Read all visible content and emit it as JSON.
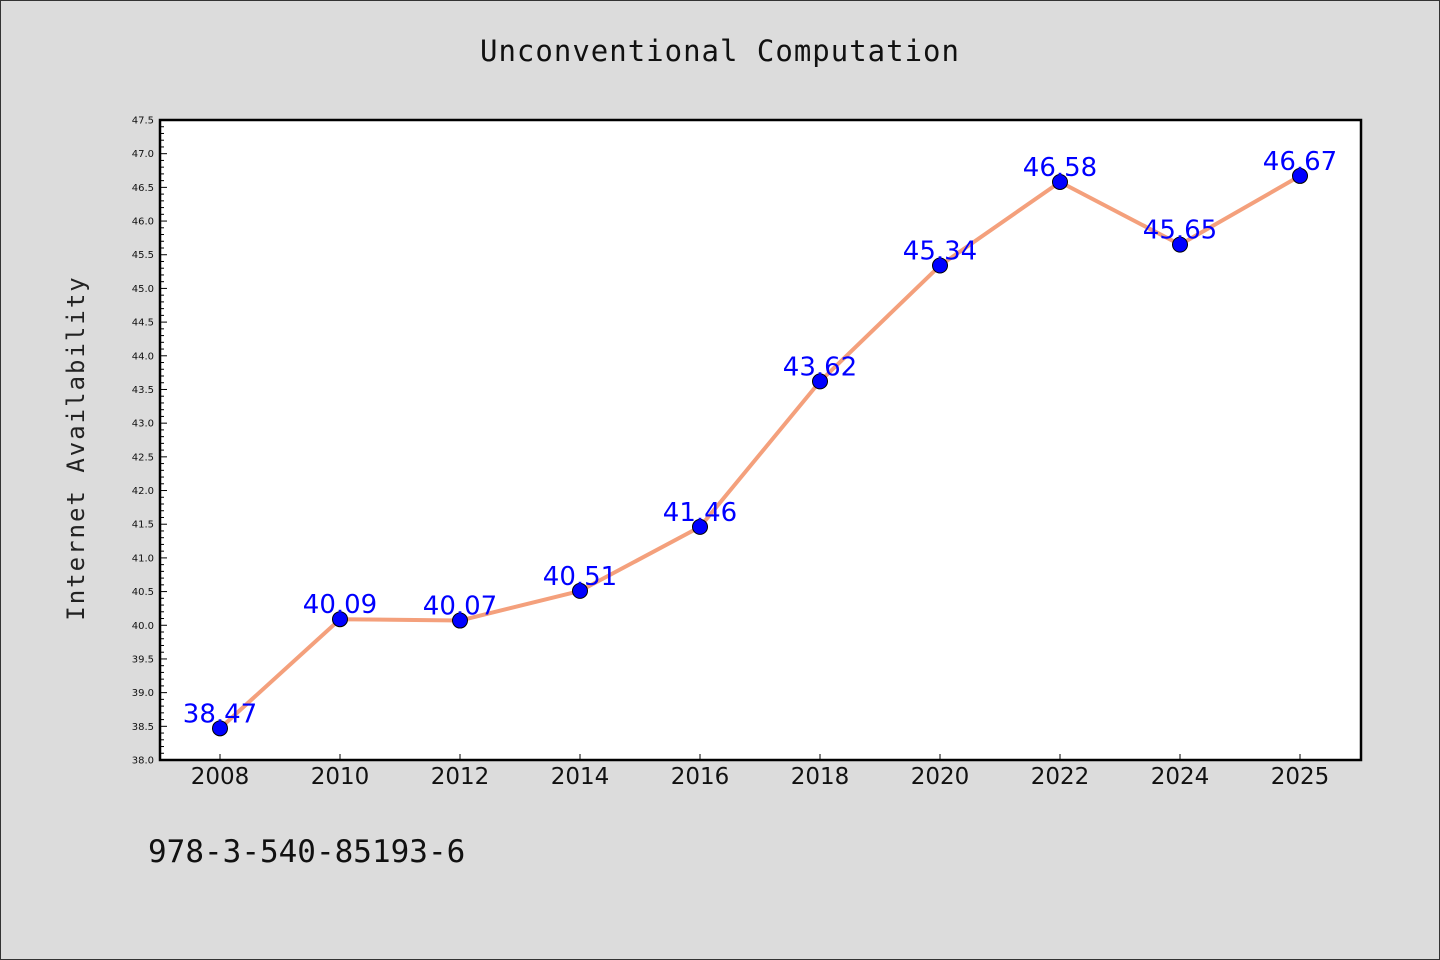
{
  "page": {
    "title": "Unconventional Computation",
    "footer_code": "978-3-540-85193-6"
  },
  "colors": {
    "background": "#dcdcdc",
    "plot_background": "#ffffff",
    "line": "#f4a07c",
    "marker": "#0000ff",
    "data_label": "#0000ff"
  },
  "chart_data": {
    "type": "line",
    "title": "Unconventional Computation",
    "xlabel": "",
    "ylabel": "Internet Availability",
    "x": [
      "2008",
      "2010",
      "2012",
      "2014",
      "2016",
      "2018",
      "2020",
      "2022",
      "2024",
      "2025"
    ],
    "series": [
      {
        "values": [
          38.47,
          40.09,
          40.07,
          40.51,
          41.46,
          43.62,
          45.34,
          46.58,
          45.65,
          46.67
        ]
      }
    ],
    "data_labels": [
      "38.47",
      "40.09",
      "40.07",
      "40.51",
      "41.46",
      "43.62",
      "45.34",
      "46.58",
      "45.65",
      "46.67"
    ],
    "ylim": [
      38.0,
      47.5
    ],
    "yticks": [
      "38.0",
      "38.5",
      "39.0",
      "39.5",
      "40.0",
      "40.5",
      "41.0",
      "41.5",
      "42.0",
      "42.5",
      "43.0",
      "43.5",
      "44.0",
      "44.5",
      "45.0",
      "45.5",
      "46.0",
      "46.5",
      "47.0",
      "47.5"
    ],
    "grid": false,
    "legend": "none",
    "markers": "circle"
  }
}
